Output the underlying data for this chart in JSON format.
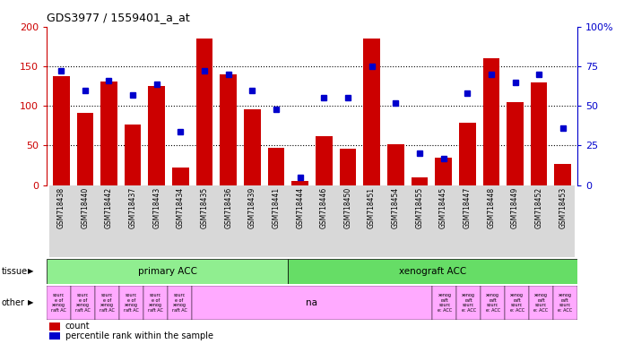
{
  "title": "GDS3977 / 1559401_a_at",
  "samples": [
    "GSM718438",
    "GSM718440",
    "GSM718442",
    "GSM718437",
    "GSM718443",
    "GSM718434",
    "GSM718435",
    "GSM718436",
    "GSM718439",
    "GSM718441",
    "GSM718444",
    "GSM718446",
    "GSM718450",
    "GSM718451",
    "GSM718454",
    "GSM718455",
    "GSM718445",
    "GSM718447",
    "GSM718448",
    "GSM718449",
    "GSM718452",
    "GSM718453"
  ],
  "counts": [
    138,
    91,
    131,
    77,
    125,
    22,
    185,
    140,
    96,
    47,
    5,
    62,
    46,
    185,
    52,
    10,
    35,
    79,
    160,
    105,
    130,
    27
  ],
  "percentile_ranks": [
    72,
    60,
    66,
    57,
    64,
    34,
    72,
    70,
    60,
    48,
    5,
    55,
    55,
    75,
    52,
    20,
    17,
    58,
    70,
    65,
    70,
    36
  ],
  "bar_color": "#cc0000",
  "dot_color": "#0000cc",
  "left_axis_color": "#cc0000",
  "right_axis_color": "#0000cc",
  "left_ylim": [
    0,
    200
  ],
  "right_ylim": [
    0,
    100
  ],
  "left_yticks": [
    0,
    50,
    100,
    150,
    200
  ],
  "right_yticks": [
    0,
    25,
    50,
    75,
    100
  ],
  "primary_acc_color": "#90ee90",
  "xenograft_acc_color": "#66dd66",
  "other_pink": "#ffaaff",
  "tick_bg_color": "#d8d8d8",
  "legend_count": "count",
  "legend_percentile": "percentile rank within the sample",
  "tissue_label": "tissue",
  "other_label": "other"
}
